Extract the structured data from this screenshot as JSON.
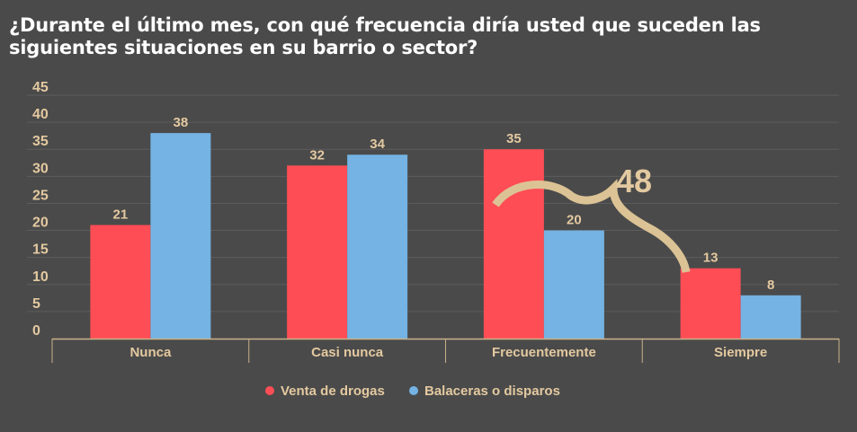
{
  "chart_data": {
    "type": "bar",
    "title": "¿Durante el último mes, con qué frecuencia diría usted que suceden las siguientes situaciones en su barrio o sector?",
    "xlabel": "",
    "ylabel": "",
    "ylim": [
      0,
      45
    ],
    "yticks": [
      0,
      5,
      10,
      15,
      20,
      25,
      30,
      35,
      40,
      45
    ],
    "categories": [
      "Nunca",
      "Casi nunca",
      "Frecuentemente",
      "Siempre"
    ],
    "series": [
      {
        "name": "Venta de drogas",
        "values": [
          21,
          32,
          35,
          13
        ],
        "color": "#ff4d55"
      },
      {
        "name": "Balaceras o disparos",
        "values": [
          38,
          34,
          20,
          8
        ],
        "color": "#74b3e3"
      }
    ],
    "grid": true,
    "legend": "bottom-center",
    "annotation": {
      "text": "48",
      "spans": [
        "Frecuentemente",
        "Siempre"
      ],
      "series": "Venta de drogas"
    }
  },
  "colors": {
    "background": "#4a4a4a",
    "text": "#e3c9a0",
    "title": "#ffffff",
    "gridline": "#5c5c5c",
    "axis": "#c8b08a",
    "brace": "#dcc395"
  }
}
